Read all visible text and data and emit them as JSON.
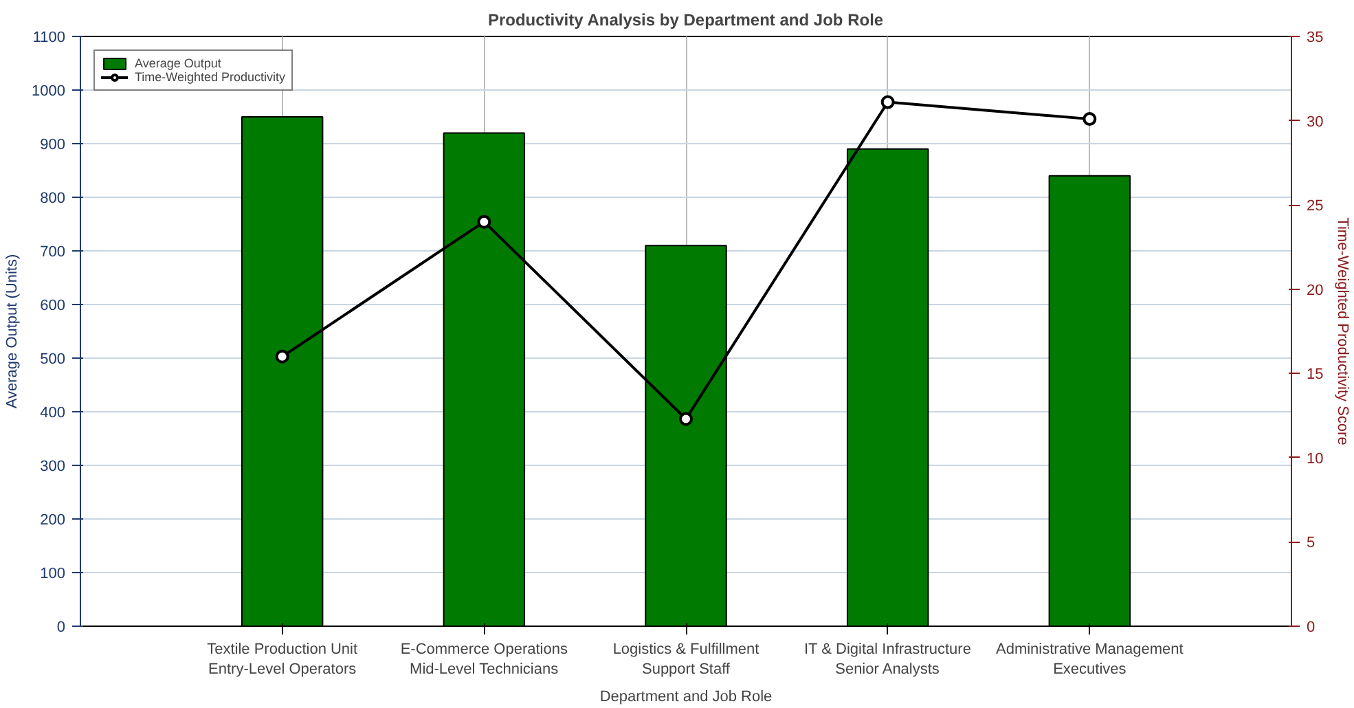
{
  "chart_data": {
    "type": "bar",
    "title": "Productivity Analysis by Department and Job Role",
    "xlabel": "Department and Job Role",
    "ylabel": "Average Output (Units)",
    "y2label": "Time-Weighted Productivity Score",
    "categories": [
      "Textile Production Unit\nEntry-Level Operators",
      "E-Commerce Operations\nMid-Level Technicians",
      "Logistics & Fulfillment\nSupport Staff",
      "IT & Digital Infrastructure\nSenior Analysts",
      "Administrative Management\nExecutives"
    ],
    "series": [
      {
        "name": "Average Output",
        "color": "#007a00",
        "values": [
          950,
          920,
          710,
          890,
          840
        ]
      },
      {
        "name": "Time-Weighted Productivity",
        "type": "line",
        "axis": "y2",
        "color": "#000000",
        "marker": "circle",
        "values": [
          16,
          24,
          12.3,
          31.1,
          30.1
        ]
      }
    ],
    "ylim": [
      0,
      1100
    ],
    "yticks": [
      0,
      100,
      200,
      300,
      400,
      500,
      600,
      700,
      800,
      900,
      1000,
      1100
    ],
    "y2lim": [
      0,
      35
    ],
    "y2ticks": [
      0,
      5,
      10,
      15,
      20,
      25,
      30,
      35
    ],
    "grid": true,
    "legend": "top left"
  }
}
